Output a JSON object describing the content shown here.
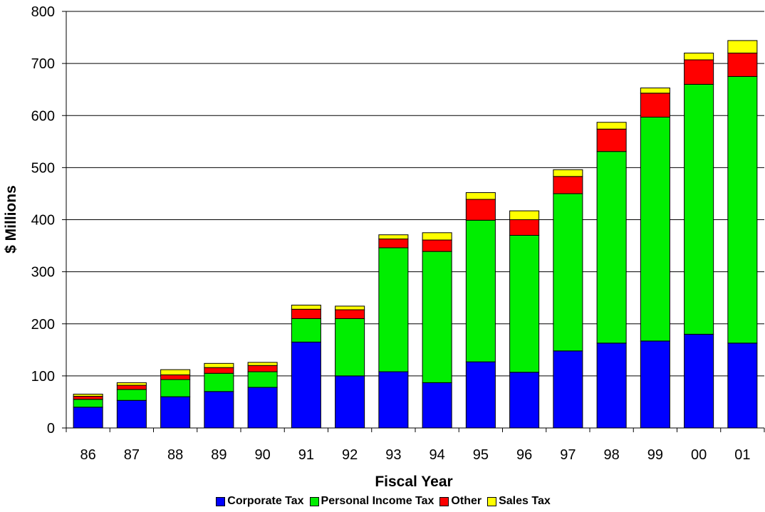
{
  "chart_data": {
    "type": "bar",
    "stacked": true,
    "title": "",
    "xlabel": "Fiscal Year",
    "ylabel": "$ Millions",
    "ylim": [
      0,
      800
    ],
    "yticks": [
      0,
      100,
      200,
      300,
      400,
      500,
      600,
      700,
      800
    ],
    "grid": true,
    "legend_position": "bottom",
    "categories": [
      "86",
      "87",
      "88",
      "89",
      "90",
      "91",
      "92",
      "93",
      "94",
      "95",
      "96",
      "97",
      "98",
      "99",
      "00",
      "01"
    ],
    "series": [
      {
        "name": "Corporate Tax",
        "color": "#0000ff",
        "values": [
          40,
          53,
          60,
          70,
          78,
          165,
          100,
          108,
          87,
          127,
          107,
          148,
          163,
          167,
          180,
          163
        ]
      },
      {
        "name": "Personal Income Tax",
        "color": "#00ee00",
        "values": [
          15,
          21,
          33,
          35,
          30,
          45,
          110,
          238,
          252,
          272,
          263,
          302,
          368,
          430,
          480,
          512
        ]
      },
      {
        "name": "Other",
        "color": "#ff0000",
        "values": [
          6,
          8,
          9,
          11,
          12,
          18,
          17,
          17,
          22,
          40,
          30,
          33,
          43,
          46,
          47,
          45
        ]
      },
      {
        "name": "Sales Tax",
        "color": "#ffff00",
        "values": [
          4,
          5,
          10,
          8,
          6,
          8,
          7,
          8,
          14,
          13,
          17,
          13,
          13,
          10,
          13,
          24
        ]
      }
    ]
  }
}
